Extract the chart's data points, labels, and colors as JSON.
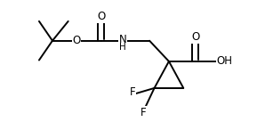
{
  "background": "#ffffff",
  "line_color": "#000000",
  "line_width": 1.4,
  "font_size": 8.5,
  "xlim": [
    -0.5,
    9.5
  ],
  "ylim": [
    1.2,
    6.5
  ],
  "figsize": [
    2.98,
    1.46
  ],
  "dpi": 100
}
